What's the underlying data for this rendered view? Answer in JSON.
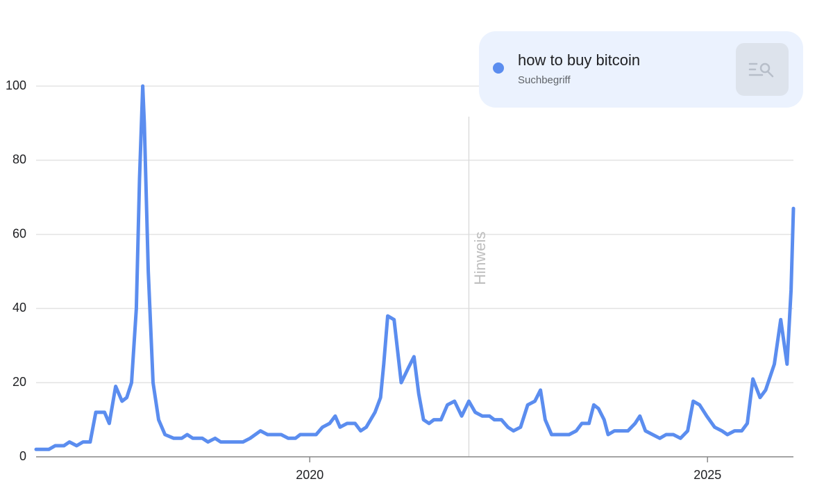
{
  "chart_data": {
    "type": "line",
    "series": [
      {
        "name": "how to buy bitcoin",
        "color": "#5b8def",
        "x": [
          2016.56,
          2016.72,
          2016.8,
          2016.91,
          2016.98,
          2017.07,
          2017.15,
          2017.24,
          2017.31,
          2017.42,
          2017.48,
          2017.56,
          2017.64,
          2017.7,
          2017.76,
          2017.82,
          2017.86,
          2017.9,
          2017.92,
          2017.97,
          2018.03,
          2018.1,
          2018.18,
          2018.29,
          2018.39,
          2018.46,
          2018.53,
          2018.65,
          2018.72,
          2018.81,
          2018.88,
          2019.03,
          2019.16,
          2019.25,
          2019.38,
          2019.47,
          2019.64,
          2019.73,
          2019.82,
          2019.88,
          2020.08,
          2020.16,
          2020.25,
          2020.32,
          2020.38,
          2020.47,
          2020.57,
          2020.64,
          2020.71,
          2020.82,
          2020.89,
          2020.93,
          2020.98,
          2021.06,
          2021.15,
          2021.24,
          2021.31,
          2021.37,
          2021.43,
          2021.5,
          2021.56,
          2021.65,
          2021.73,
          2021.82,
          2021.91,
          2022.0,
          2022.08,
          2022.17,
          2022.26,
          2022.32,
          2022.41,
          2022.49,
          2022.56,
          2022.65,
          2022.74,
          2022.83,
          2022.9,
          2022.96,
          2023.04,
          2023.13,
          2023.26,
          2023.35,
          2023.42,
          2023.51,
          2023.57,
          2023.63,
          2023.7,
          2023.75,
          2023.83,
          2024.0,
          2024.09,
          2024.15,
          2024.22,
          2024.31,
          2024.4,
          2024.48,
          2024.57,
          2024.66,
          2024.75,
          2024.82,
          2024.9,
          2024.99,
          2025.09,
          2025.18,
          2025.25,
          2025.34,
          2025.43,
          2025.5,
          2025.57,
          2025.66,
          2025.73,
          2025.84,
          2025.92,
          2026.0,
          2026.05,
          2026.08
        ],
        "values": [
          2,
          2,
          3,
          3,
          4,
          3,
          4,
          4,
          12,
          12,
          9,
          19,
          15,
          16,
          20,
          40,
          75,
          100,
          90,
          50,
          20,
          10,
          6,
          5,
          5,
          6,
          5,
          5,
          4,
          5,
          4,
          4,
          4,
          5,
          7,
          6,
          6,
          5,
          5,
          6,
          6,
          8,
          9,
          11,
          8,
          9,
          9,
          7,
          8,
          12,
          16,
          25,
          38,
          37,
          20,
          24,
          27,
          17,
          10,
          9,
          10,
          10,
          14,
          15,
          11,
          15,
          12,
          11,
          11,
          10,
          10,
          8,
          7,
          8,
          14,
          15,
          18,
          10,
          6,
          6,
          6,
          7,
          9,
          9,
          14,
          13,
          10,
          6,
          7,
          7,
          9,
          11,
          7,
          6,
          5,
          6,
          6,
          5,
          7,
          15,
          14,
          11,
          8,
          7,
          6,
          7,
          7,
          9,
          21,
          16,
          18,
          25,
          37,
          25,
          45,
          67
        ]
      }
    ],
    "legend_subtitle": "Suchbegriff",
    "annotations": [
      {
        "x": 2022.0,
        "label": "Hinweis"
      }
    ],
    "xlim": [
      2016.56,
      2026.08
    ],
    "xticks": [
      2020,
      2025
    ],
    "ylim": [
      0,
      100
    ],
    "yticks": [
      0,
      20,
      40,
      60,
      80,
      100
    ],
    "grid": true
  }
}
